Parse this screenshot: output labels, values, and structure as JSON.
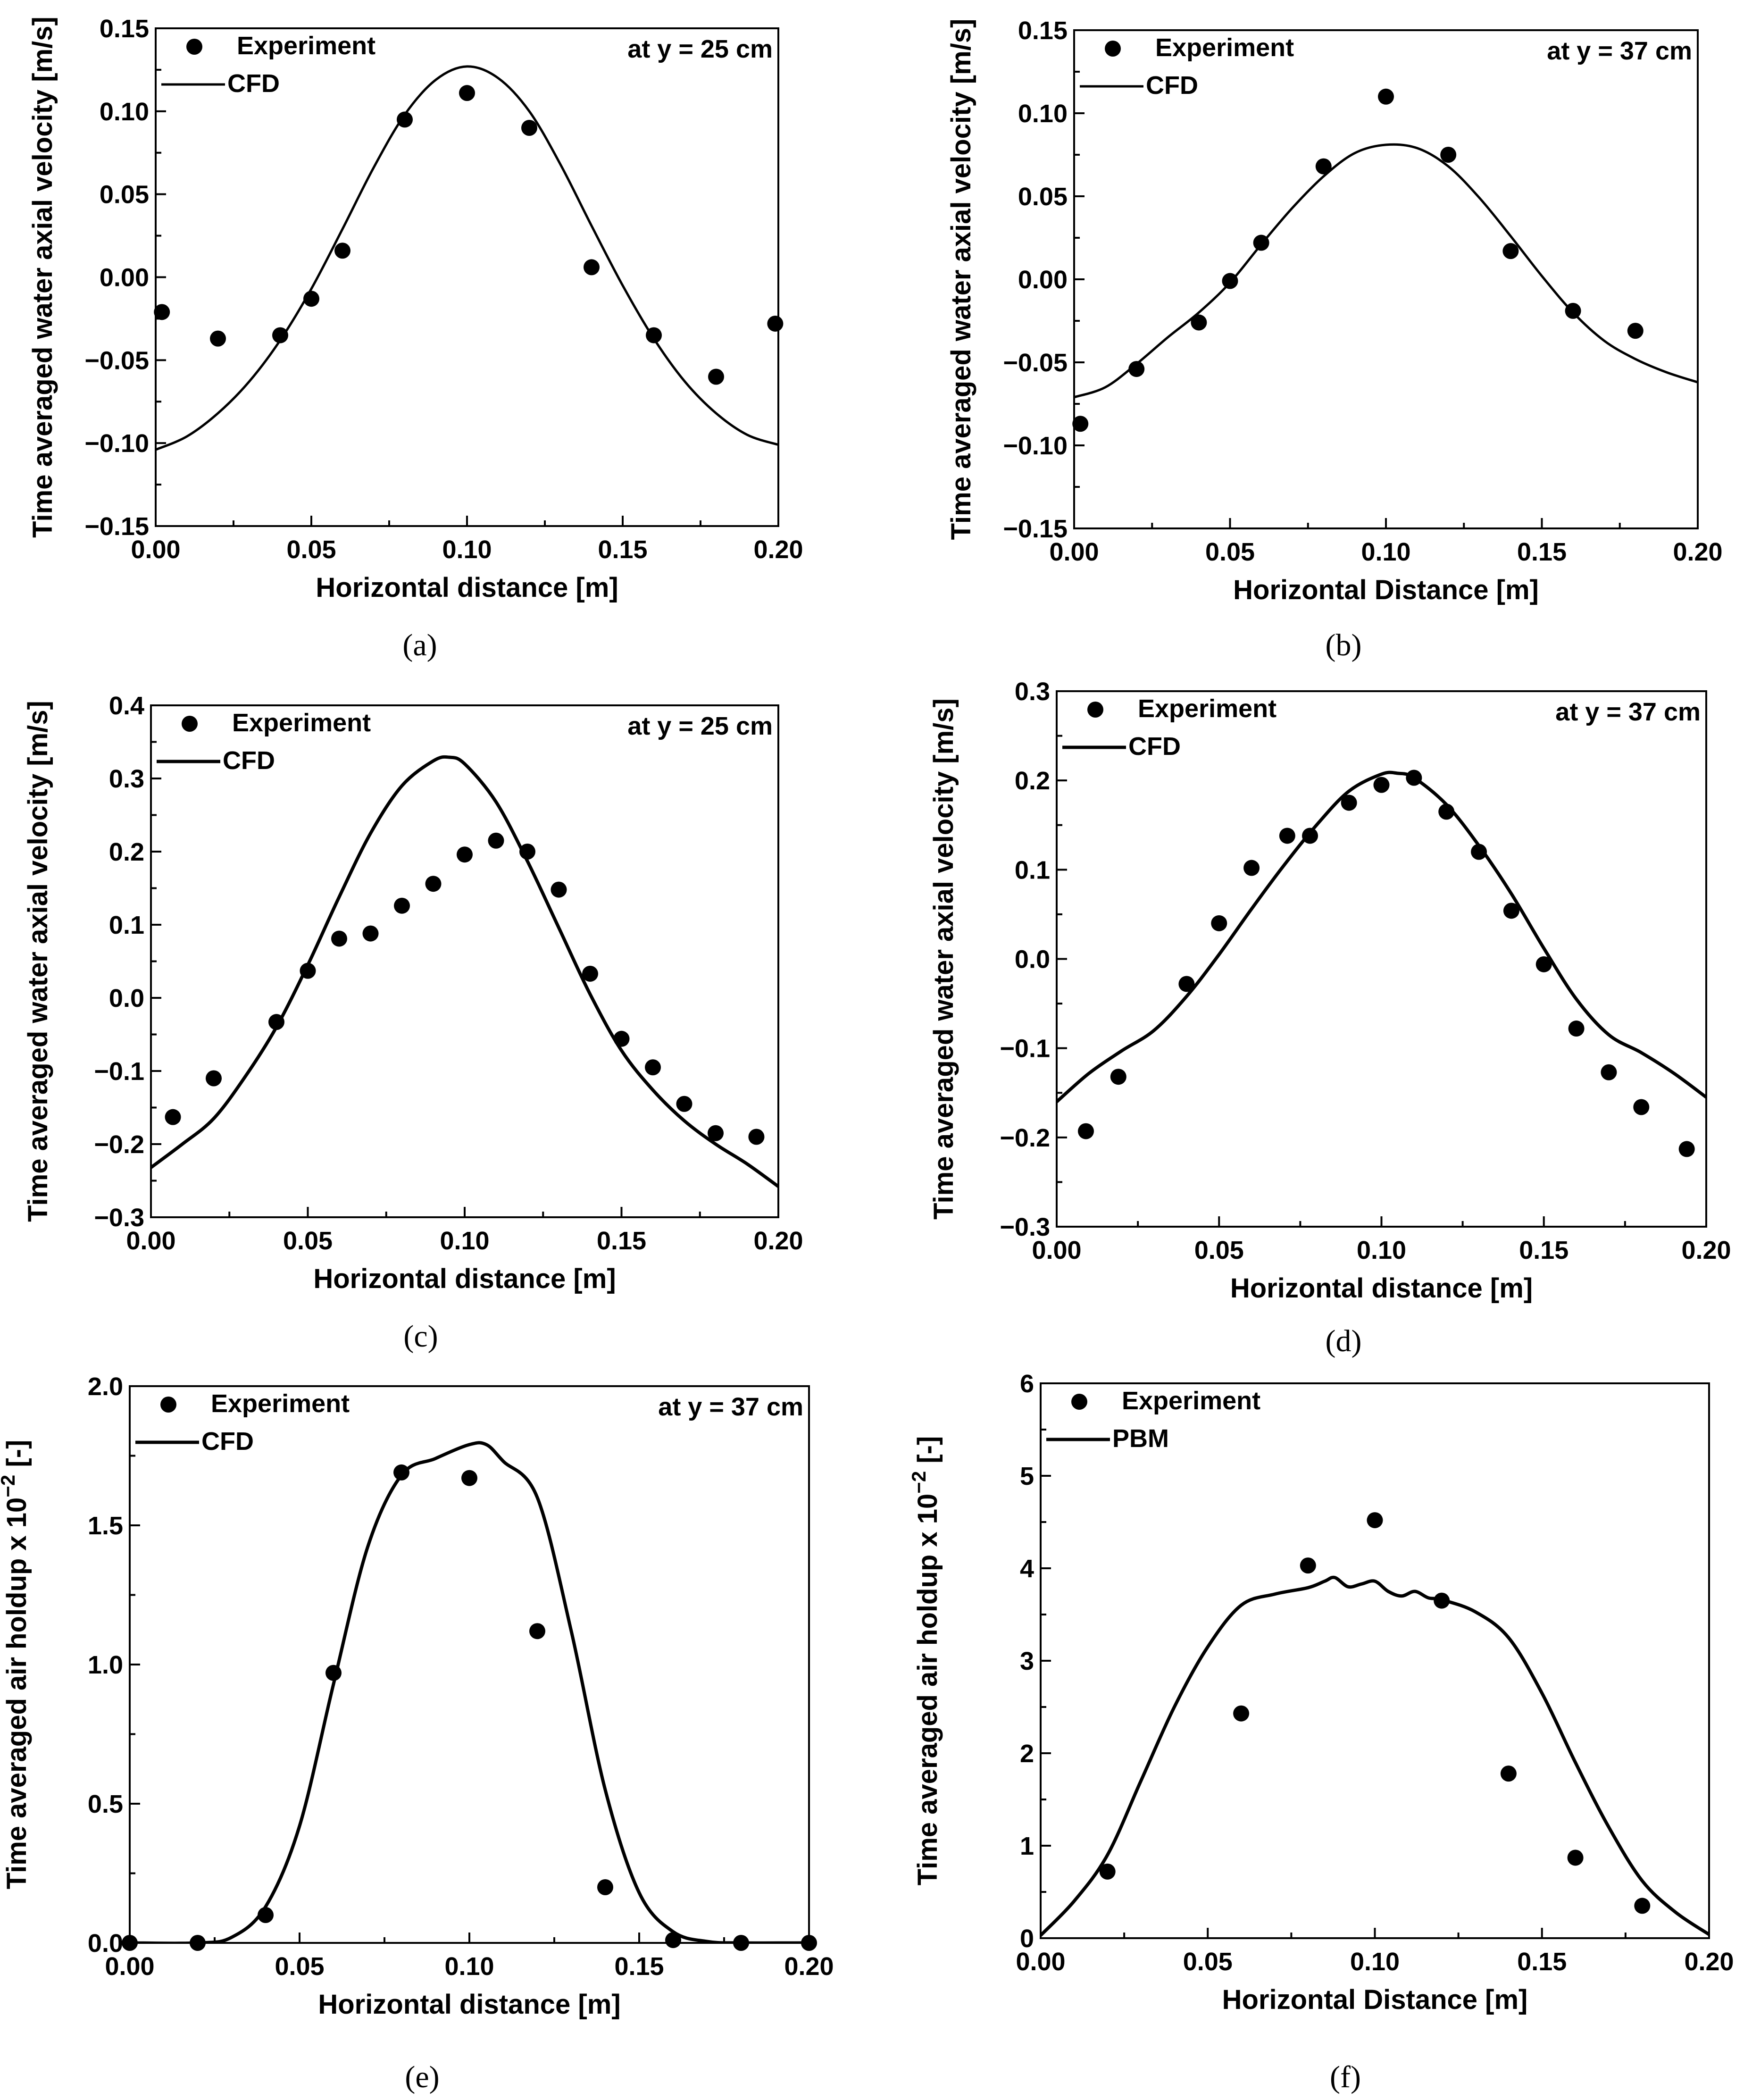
{
  "figure": {
    "panels": [
      "a",
      "b",
      "c",
      "d",
      "e",
      "f"
    ]
  },
  "chart_data": [
    {
      "id": "a",
      "caption": "(a)",
      "type": "scatter+line",
      "title": "",
      "annotation": "at y = 25 cm",
      "xlabel": "Horizontal distance [m]",
      "ylabel": "Time averaged water axial velocity [m/s]",
      "xlim": [
        0,
        0.2
      ],
      "ylim": [
        -0.15,
        0.15
      ],
      "xticks": [
        0.0,
        0.05,
        0.1,
        0.15,
        0.2
      ],
      "xtick_labels": [
        "0.00",
        "0.05",
        "0.10",
        "0.15",
        "0.20"
      ],
      "yticks": [
        -0.15,
        -0.1,
        -0.05,
        0.0,
        0.05,
        0.1,
        0.15
      ],
      "ytick_labels": [
        "−0.15",
        "−0.10",
        "−0.05",
        "0.00",
        "0.05",
        "0.10",
        "0.15"
      ],
      "legend": [
        {
          "label": "Experiment",
          "kind": "marker"
        },
        {
          "label": "CFD",
          "kind": "line"
        }
      ],
      "series": [
        {
          "name": "Experiment",
          "kind": "scatter",
          "x": [
            0.002,
            0.02,
            0.04,
            0.05,
            0.06,
            0.08,
            0.1,
            0.12,
            0.14,
            0.16,
            0.18,
            0.199
          ],
          "y": [
            -0.021,
            -0.037,
            -0.035,
            -0.013,
            0.016,
            0.095,
            0.111,
            0.09,
            0.006,
            -0.035,
            -0.06,
            -0.028
          ]
        },
        {
          "name": "CFD",
          "kind": "line",
          "x": [
            0.0,
            0.01,
            0.02,
            0.03,
            0.04,
            0.05,
            0.06,
            0.07,
            0.08,
            0.09,
            0.1,
            0.11,
            0.12,
            0.13,
            0.14,
            0.15,
            0.16,
            0.17,
            0.18,
            0.19,
            0.2
          ],
          "y": [
            -0.104,
            -0.096,
            -0.082,
            -0.063,
            -0.038,
            -0.007,
            0.029,
            0.066,
            0.098,
            0.119,
            0.127,
            0.12,
            0.1,
            0.068,
            0.031,
            -0.005,
            -0.037,
            -0.063,
            -0.082,
            -0.095,
            -0.101
          ]
        }
      ]
    },
    {
      "id": "b",
      "caption": "(b)",
      "type": "scatter+line",
      "title": "",
      "annotation": "at y = 37 cm",
      "xlabel": "Horizontal Distance [m]",
      "ylabel": "Time averaged water axial velocity [m/s]",
      "xlim": [
        0,
        0.2
      ],
      "ylim": [
        -0.15,
        0.15
      ],
      "xticks": [
        0.0,
        0.05,
        0.1,
        0.15,
        0.2
      ],
      "xtick_labels": [
        "0.00",
        "0.05",
        "0.10",
        "0.15",
        "0.20"
      ],
      "yticks": [
        -0.15,
        -0.1,
        -0.05,
        0.0,
        0.05,
        0.1,
        0.15
      ],
      "ytick_labels": [
        "−0.15",
        "−0.10",
        "−0.05",
        "0.00",
        "0.05",
        "0.10",
        "0.15"
      ],
      "legend": [
        {
          "label": "Experiment",
          "kind": "marker"
        },
        {
          "label": "CFD",
          "kind": "line"
        }
      ],
      "series": [
        {
          "name": "Experiment",
          "kind": "scatter",
          "x": [
            0.002,
            0.02,
            0.04,
            0.05,
            0.06,
            0.08,
            0.1,
            0.12,
            0.14,
            0.16,
            0.18
          ],
          "y": [
            -0.087,
            -0.054,
            -0.026,
            -0.001,
            0.022,
            0.068,
            0.11,
            0.075,
            0.017,
            -0.019,
            -0.031
          ]
        },
        {
          "name": "CFD",
          "kind": "line",
          "x": [
            0.0,
            0.01,
            0.02,
            0.03,
            0.04,
            0.05,
            0.06,
            0.07,
            0.08,
            0.09,
            0.1,
            0.11,
            0.12,
            0.13,
            0.14,
            0.15,
            0.16,
            0.17,
            0.18,
            0.19,
            0.2
          ],
          "y": [
            -0.071,
            -0.065,
            -0.051,
            -0.035,
            -0.02,
            -0.002,
            0.021,
            0.043,
            0.062,
            0.076,
            0.081,
            0.079,
            0.068,
            0.049,
            0.026,
            0.002,
            -0.02,
            -0.037,
            -0.048,
            -0.056,
            -0.062
          ]
        }
      ]
    },
    {
      "id": "c",
      "caption": "(c)",
      "type": "scatter+line",
      "title": "",
      "annotation": "at y = 25 cm",
      "xlabel": "Horizontal distance [m]",
      "ylabel": "Time averaged water axial velocity [m/s]",
      "xlim": [
        0,
        0.2
      ],
      "ylim": [
        -0.3,
        0.4
      ],
      "xticks": [
        0.0,
        0.05,
        0.1,
        0.15,
        0.2
      ],
      "xtick_labels": [
        "0.00",
        "0.05",
        "0.10",
        "0.15",
        "0.20"
      ],
      "yticks": [
        -0.3,
        -0.2,
        -0.1,
        0.0,
        0.1,
        0.2,
        0.3,
        0.4
      ],
      "ytick_labels": [
        "−0.3",
        "−0.2",
        "−0.1",
        "0.0",
        "0.1",
        "0.2",
        "0.3",
        "0.4"
      ],
      "legend": [
        {
          "label": "Experiment",
          "kind": "marker"
        },
        {
          "label": "CFD",
          "kind": "line"
        }
      ],
      "series": [
        {
          "name": "Experiment",
          "kind": "scatter",
          "x": [
            0.007,
            0.02,
            0.04,
            0.05,
            0.06,
            0.07,
            0.08,
            0.09,
            0.1,
            0.11,
            0.12,
            0.13,
            0.14,
            0.15,
            0.16,
            0.17,
            0.18,
            0.193
          ],
          "y": [
            -0.163,
            -0.11,
            -0.033,
            0.037,
            0.081,
            0.088,
            0.126,
            0.156,
            0.196,
            0.215,
            0.2,
            0.148,
            0.033,
            -0.056,
            -0.095,
            -0.145,
            -0.185,
            -0.19
          ]
        },
        {
          "name": "CFD",
          "kind": "line",
          "x": [
            0.0,
            0.01,
            0.02,
            0.03,
            0.04,
            0.05,
            0.06,
            0.07,
            0.08,
            0.09,
            0.095,
            0.1,
            0.11,
            0.12,
            0.13,
            0.14,
            0.15,
            0.16,
            0.17,
            0.18,
            0.19,
            0.2
          ],
          "y": [
            -0.232,
            -0.2,
            -0.165,
            -0.108,
            -0.04,
            0.045,
            0.138,
            0.225,
            0.29,
            0.324,
            0.329,
            0.32,
            0.268,
            0.187,
            0.096,
            0.005,
            -0.072,
            -0.126,
            -0.168,
            -0.2,
            -0.227,
            -0.258
          ]
        }
      ]
    },
    {
      "id": "d",
      "caption": "(d)",
      "type": "scatter+line",
      "title": "",
      "annotation": "at y = 37 cm",
      "xlabel": "Horizontal distance [m]",
      "ylabel": "Time averaged water axial velocity [m/s]",
      "xlim": [
        0,
        0.2
      ],
      "ylim": [
        -0.3,
        0.3
      ],
      "xticks": [
        0.0,
        0.05,
        0.1,
        0.15,
        0.2
      ],
      "xtick_labels": [
        "0.00",
        "0.05",
        "0.10",
        "0.15",
        "0.20"
      ],
      "yticks": [
        -0.3,
        -0.2,
        -0.1,
        0.0,
        0.1,
        0.2,
        0.3
      ],
      "ytick_labels": [
        "−0.3",
        "−0.2",
        "−0.1",
        "0.0",
        "0.1",
        "0.2",
        "0.3"
      ],
      "legend": [
        {
          "label": "Experiment",
          "kind": "marker"
        },
        {
          "label": "CFD",
          "kind": "line"
        }
      ],
      "series": [
        {
          "name": "Experiment",
          "kind": "scatter",
          "x": [
            0.009,
            0.019,
            0.04,
            0.05,
            0.06,
            0.071,
            0.078,
            0.09,
            0.1,
            0.11,
            0.12,
            0.13,
            0.14,
            0.15,
            0.16,
            0.17,
            0.18,
            0.194
          ],
          "y": [
            -0.193,
            -0.132,
            -0.028,
            0.04,
            0.102,
            0.138,
            0.138,
            0.175,
            0.195,
            0.203,
            0.165,
            0.12,
            0.054,
            -0.006,
            -0.078,
            -0.127,
            -0.166,
            -0.213
          ]
        },
        {
          "name": "CFD",
          "kind": "line",
          "x": [
            0.0,
            0.01,
            0.02,
            0.03,
            0.04,
            0.05,
            0.06,
            0.07,
            0.08,
            0.09,
            0.1,
            0.105,
            0.11,
            0.12,
            0.13,
            0.14,
            0.15,
            0.16,
            0.17,
            0.18,
            0.19,
            0.2
          ],
          "y": [
            -0.16,
            -0.128,
            -0.103,
            -0.08,
            -0.042,
            0.005,
            0.056,
            0.105,
            0.15,
            0.188,
            0.207,
            0.208,
            0.203,
            0.173,
            0.127,
            0.073,
            0.012,
            -0.045,
            -0.085,
            -0.105,
            -0.128,
            -0.155
          ]
        }
      ]
    },
    {
      "id": "e",
      "caption": "(e)",
      "type": "scatter+line",
      "title": "",
      "annotation": "at y = 37 cm",
      "xlabel": "Horizontal distance [m]",
      "ylabel_main": "Time averaged air holdup x 10",
      "ylabel_sup": "−2",
      "ylabel_unit": " [-]",
      "xlim": [
        0,
        0.2
      ],
      "ylim": [
        0,
        2.0
      ],
      "xticks": [
        0.0,
        0.05,
        0.1,
        0.15,
        0.2
      ],
      "xtick_labels": [
        "0.00",
        "0.05",
        "0.10",
        "0.15",
        "0.20"
      ],
      "yticks": [
        0.0,
        0.5,
        1.0,
        1.5,
        2.0
      ],
      "ytick_labels": [
        "0.0",
        "0.5",
        "1.0",
        "1.5",
        "2.0"
      ],
      "legend": [
        {
          "label": "Experiment",
          "kind": "marker"
        },
        {
          "label": "CFD",
          "kind": "line"
        }
      ],
      "series": [
        {
          "name": "Experiment",
          "kind": "scatter",
          "x": [
            0.0,
            0.02,
            0.04,
            0.06,
            0.08,
            0.1,
            0.12,
            0.14,
            0.16,
            0.18,
            0.2
          ],
          "y": [
            0.0,
            0.0,
            0.1,
            0.97,
            1.69,
            1.67,
            1.12,
            0.2,
            0.01,
            0.0,
            0.0
          ]
        },
        {
          "name": "CFD",
          "kind": "line",
          "x": [
            0.0,
            0.02,
            0.03,
            0.04,
            0.05,
            0.06,
            0.07,
            0.08,
            0.09,
            0.1,
            0.105,
            0.11,
            0.12,
            0.13,
            0.14,
            0.15,
            0.16,
            0.17,
            0.18,
            0.2
          ],
          "y": [
            0.0,
            0.0,
            0.02,
            0.13,
            0.42,
            0.93,
            1.42,
            1.68,
            1.74,
            1.79,
            1.79,
            1.73,
            1.6,
            1.12,
            0.55,
            0.18,
            0.04,
            0.005,
            0.0,
            0.0
          ]
        }
      ]
    },
    {
      "id": "f",
      "caption": "(f)",
      "type": "scatter+line",
      "title": "",
      "annotation": "",
      "xlabel": "Horizontal Distance [m]",
      "ylabel_main": "Time averaged air holdup x 10",
      "ylabel_sup": "−2",
      "ylabel_unit": " [-]",
      "xlim": [
        0,
        0.2
      ],
      "ylim": [
        0,
        6
      ],
      "xticks": [
        0.0,
        0.05,
        0.1,
        0.15,
        0.2
      ],
      "xtick_labels": [
        "0.00",
        "0.05",
        "0.10",
        "0.15",
        "0.20"
      ],
      "yticks": [
        0,
        1,
        2,
        3,
        4,
        5,
        6
      ],
      "ytick_labels": [
        "0",
        "1",
        "2",
        "3",
        "4",
        "5",
        "6"
      ],
      "legend": [
        {
          "label": "Experiment",
          "kind": "marker"
        },
        {
          "label": "PBM",
          "kind": "line"
        }
      ],
      "series": [
        {
          "name": "Experiment",
          "kind": "scatter",
          "x": [
            0.02,
            0.06,
            0.08,
            0.1,
            0.12,
            0.14,
            0.16,
            0.18
          ],
          "y": [
            0.72,
            2.43,
            4.03,
            4.52,
            3.65,
            1.78,
            0.87,
            0.35
          ]
        },
        {
          "name": "PBM",
          "kind": "line",
          "x": [
            0.0,
            0.01,
            0.02,
            0.03,
            0.04,
            0.05,
            0.06,
            0.07,
            0.08,
            0.085,
            0.088,
            0.092,
            0.096,
            0.1,
            0.104,
            0.108,
            0.112,
            0.116,
            0.12,
            0.13,
            0.14,
            0.15,
            0.16,
            0.17,
            0.18,
            0.19,
            0.2
          ],
          "y": [
            0.03,
            0.4,
            0.9,
            1.7,
            2.5,
            3.15,
            3.6,
            3.72,
            3.79,
            3.86,
            3.9,
            3.8,
            3.83,
            3.86,
            3.75,
            3.7,
            3.75,
            3.68,
            3.66,
            3.53,
            3.25,
            2.65,
            1.9,
            1.2,
            0.62,
            0.28,
            0.04
          ]
        }
      ]
    }
  ]
}
